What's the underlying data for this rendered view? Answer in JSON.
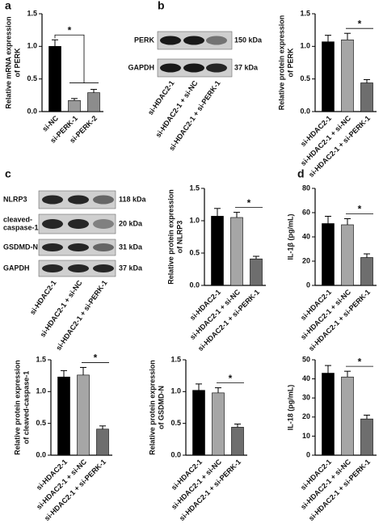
{
  "panel_labels": [
    "a",
    "b",
    "c",
    "d"
  ],
  "blots": [
    {
      "rows": [
        {
          "protein": "PERK",
          "size": "150 kDa"
        },
        {
          "protein": "GAPDH",
          "size": "37 kDa"
        }
      ]
    },
    {
      "rows": [
        {
          "protein": "NLRP3",
          "size": "118 kDa"
        },
        {
          "protein": [
            "cleaved-",
            "caspase-1"
          ],
          "size": "20 kDa"
        },
        {
          "protein": "GSDMD-N",
          "size": "31 kDa"
        },
        {
          "protein": "GAPDH",
          "size": "37 kDa"
        }
      ]
    }
  ],
  "chart_data": [
    {
      "type": "bar",
      "categories": [
        "si-NC",
        "si-PERK-1",
        "si-PERK-2"
      ],
      "values": [
        1.0,
        0.17,
        0.29
      ],
      "errors": [
        0.1,
        0.03,
        0.05
      ],
      "colors": [
        "#000000",
        "#9a9a9a",
        "#8c8c8c"
      ],
      "ylabel": [
        "Relative mRNA expression",
        "of PERK"
      ],
      "ylim": [
        0,
        1.5
      ],
      "yticks": [
        {
          "value": 0,
          "label": "0.0"
        },
        0.5,
        {
          "value": 1,
          "label": "1.0"
        },
        1.5
      ],
      "annotation": "*"
    },
    {
      "type": "bar",
      "categories": [
        "si-HDAC2-1",
        "si-HDAC2-1 + si-NC",
        "si-HDAC2-1 + si-PERK-1"
      ],
      "values": [
        1.07,
        1.1,
        0.44
      ],
      "errors": [
        0.1,
        0.1,
        0.05
      ],
      "colors": [
        "#000000",
        "#a6a6a6",
        "#6e6e6e"
      ],
      "ylabel": [
        "Relative protein expression",
        "of PERK"
      ],
      "ylim": [
        0,
        1.5
      ],
      "yticks": [
        {
          "value": 0,
          "label": "0.0"
        },
        0.5,
        {
          "value": 1,
          "label": "1.0"
        },
        1.5
      ],
      "annotation": "*"
    },
    {
      "type": "bar",
      "categories": [
        "si-HDAC2-1",
        "si-HDAC2-1 + si-NC",
        "si-HDAC2-1 + si-PERK-1"
      ],
      "values": [
        1.07,
        1.05,
        0.41
      ],
      "errors": [
        0.12,
        0.08,
        0.04
      ],
      "colors": [
        "#000000",
        "#a6a6a6",
        "#6e6e6e"
      ],
      "ylabel": [
        "Relative protein expression",
        "of NLRP3"
      ],
      "ylim": [
        0,
        1.5
      ],
      "yticks": [
        {
          "value": 0,
          "label": "0.0"
        },
        0.5,
        {
          "value": 1,
          "label": "1.0"
        },
        1.5
      ],
      "annotation": "*"
    },
    {
      "type": "bar",
      "categories": [
        "si-HDAC2-1",
        "si-HDAC2-1 + si-NC",
        "si-HDAC2-1 + si-PERK-1"
      ],
      "values": [
        51,
        50,
        23
      ],
      "errors": [
        6,
        5,
        3
      ],
      "colors": [
        "#000000",
        "#a6a6a6",
        "#6e6e6e"
      ],
      "ylabel": [
        "IL-1β (pg/mL)"
      ],
      "ylim": [
        0,
        80
      ],
      "yticks": [
        0,
        20,
        40,
        60,
        80
      ],
      "annotation": "*"
    },
    {
      "type": "bar",
      "categories": [
        "si-HDAC2-1",
        "si-HDAC2-1 + si-NC",
        "si-HDAC2-1 + si-PERK-1"
      ],
      "values": [
        1.23,
        1.26,
        0.41
      ],
      "errors": [
        0.1,
        0.12,
        0.05
      ],
      "colors": [
        "#000000",
        "#a6a6a6",
        "#6e6e6e"
      ],
      "ylabel": [
        "Relative protein expression",
        "of cleaved-caspase-1"
      ],
      "ylim": [
        0,
        1.5
      ],
      "yticks": [
        {
          "value": 0,
          "label": "0.0"
        },
        0.5,
        {
          "value": 1,
          "label": "1.0"
        },
        1.5
      ],
      "annotation": "*"
    },
    {
      "type": "bar",
      "categories": [
        "si-HDAC2-1",
        "si-HDAC2-1 + si-NC",
        "si-HDAC2-1 + si-PERK-1"
      ],
      "values": [
        1.02,
        0.98,
        0.44
      ],
      "errors": [
        0.1,
        0.08,
        0.05
      ],
      "colors": [
        "#000000",
        "#a6a6a6",
        "#6e6e6e"
      ],
      "ylabel": [
        "Relative protein expression",
        "of GSDMD-N"
      ],
      "ylim": [
        0,
        1.5
      ],
      "yticks": [
        {
          "value": 0,
          "label": "0.0"
        },
        0.5,
        {
          "value": 1,
          "label": "1.0"
        },
        1.5
      ],
      "annotation": "*"
    },
    {
      "type": "bar",
      "categories": [
        "si-HDAC2-1",
        "si-HDAC2-1 + si-NC",
        "si-HDAC2-1 + si-PERK-1"
      ],
      "values": [
        43,
        41,
        19
      ],
      "errors": [
        4,
        3,
        2
      ],
      "colors": [
        "#000000",
        "#a6a6a6",
        "#6e6e6e"
      ],
      "ylabel": [
        "IL-18 (pg/mL)"
      ],
      "ylim": [
        0,
        50
      ],
      "yticks": [
        0,
        10,
        20,
        30,
        40,
        50
      ],
      "annotation": "*"
    }
  ]
}
